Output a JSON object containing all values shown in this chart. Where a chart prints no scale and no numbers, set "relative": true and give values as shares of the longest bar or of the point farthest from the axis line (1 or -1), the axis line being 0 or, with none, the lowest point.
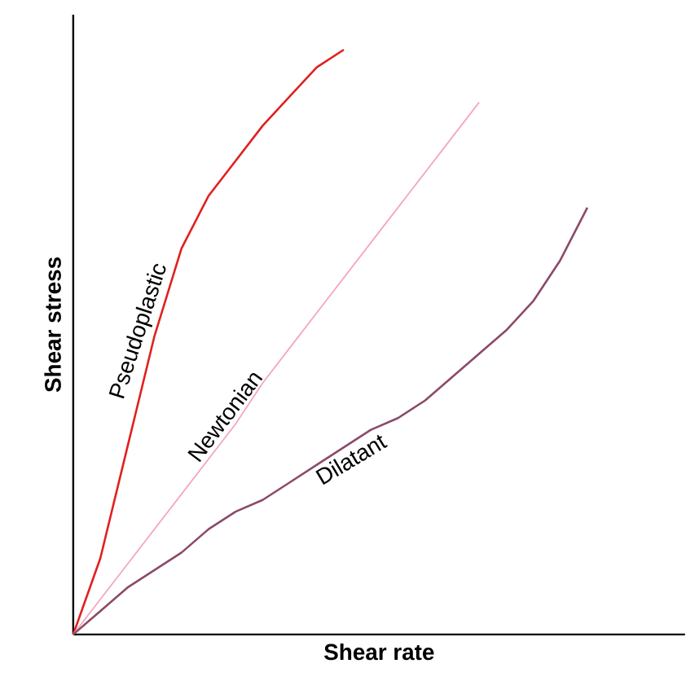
{
  "chart_data": {
    "type": "line",
    "relative": true,
    "xlabel": "Shear rate",
    "ylabel": "Shear stress",
    "categories": [
      null,
      null,
      null,
      null,
      null,
      null,
      null,
      null,
      null,
      null,
      null,
      null,
      null,
      null,
      null,
      null,
      null,
      null,
      null,
      null
    ],
    "series": [
      {
        "name": "Pseudoplastic",
        "color": "#e0201e",
        "values": [
          0,
          0.13,
          0.32,
          0.51,
          0.66,
          0.75,
          0.81,
          0.87,
          0.92,
          0.97,
          1.0,
          null,
          null,
          null,
          null,
          null,
          null,
          null,
          null,
          null
        ]
      },
      {
        "name": "Newtonian",
        "color": "#f4a6c0",
        "values": [
          0,
          0.06,
          0.12,
          0.18,
          0.24,
          0.3,
          0.36,
          0.43,
          0.49,
          0.55,
          0.61,
          0.67,
          0.73,
          0.79,
          0.85,
          0.91,
          null,
          null,
          null,
          null
        ]
      },
      {
        "name": "Dilatant",
        "color": "#8b4a6a",
        "values": [
          0,
          0.04,
          0.08,
          0.11,
          0.14,
          0.18,
          0.21,
          0.23,
          0.26,
          0.29,
          0.32,
          0.35,
          0.37,
          0.4,
          0.44,
          0.48,
          0.52,
          0.57,
          0.64,
          0.73
        ]
      }
    ]
  }
}
